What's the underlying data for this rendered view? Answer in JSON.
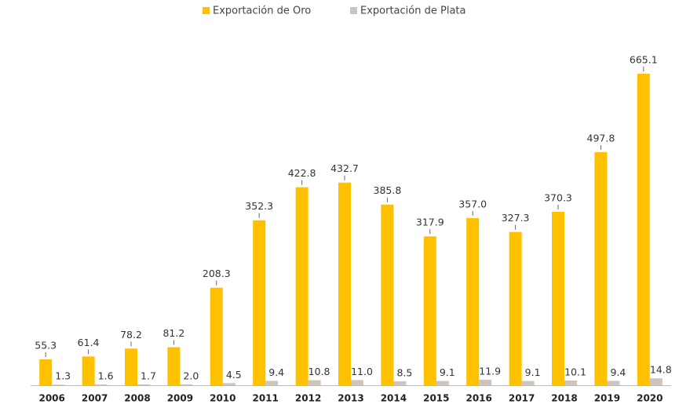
{
  "chart_data": {
    "type": "bar",
    "categories": [
      "2006",
      "2007",
      "2008",
      "2009",
      "2010",
      "2011",
      "2012",
      "2013",
      "2014",
      "2015",
      "2016",
      "2017",
      "2018",
      "2019",
      "2020"
    ],
    "series": [
      {
        "name": "Exportación de Oro",
        "color": "#ffc000",
        "values": [
          55.3,
          61.4,
          78.2,
          81.2,
          208.3,
          352.3,
          422.8,
          432.7,
          385.8,
          317.9,
          357.0,
          327.3,
          370.3,
          497.8,
          665.1
        ],
        "value_labels": [
          "55.3",
          "61.4",
          "78.2",
          "81.2",
          "208.3",
          "352.3",
          "422.8",
          "432.7",
          "385.8",
          "317.9",
          "357.0",
          "327.3",
          "370.3",
          "497.8",
          "665.1"
        ]
      },
      {
        "name": "Exportación de Plata",
        "color": "#cdc5bb",
        "values": [
          1.3,
          1.6,
          1.7,
          2.0,
          4.5,
          9.4,
          10.8,
          11.0,
          8.5,
          9.1,
          11.9,
          9.1,
          10.1,
          9.4,
          14.8
        ],
        "value_labels": [
          "1.3",
          "1.6",
          "1.7",
          "2.0",
          "4.5",
          "9.4",
          "10.8",
          "11.0",
          "8.5",
          "9.1",
          "11.9",
          "9.1",
          "10.1",
          "9.4",
          "14.8"
        ]
      }
    ],
    "legend": "top"
  }
}
